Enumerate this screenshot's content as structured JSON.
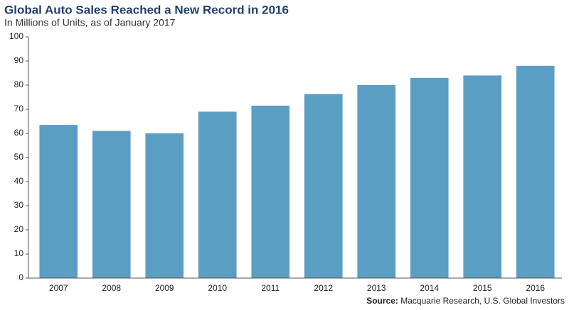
{
  "chart_data": {
    "type": "bar",
    "title": "Global Auto Sales Reached a New Record in 2016",
    "subtitle": "In Millions of Units, as of January 2017",
    "categories": [
      "2007",
      "2008",
      "2009",
      "2010",
      "2011",
      "2012",
      "2013",
      "2014",
      "2015",
      "2016"
    ],
    "values": [
      63.5,
      61,
      60,
      69,
      71.5,
      76.3,
      80,
      83,
      84,
      88
    ],
    "color": "#5a9ec4",
    "ylim": [
      0,
      100
    ],
    "yticks": [
      0,
      10,
      20,
      30,
      40,
      50,
      60,
      70,
      80,
      90,
      100
    ],
    "grid": false,
    "source_label": "Source:",
    "source": "Macquarie Research, U.S. Global Investors"
  }
}
